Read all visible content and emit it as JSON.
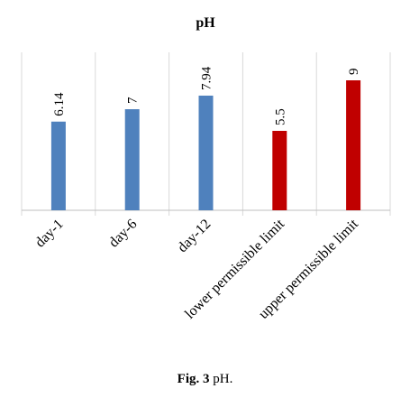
{
  "chart_data": {
    "type": "bar",
    "title": "pH",
    "categories": [
      "day-1",
      "day-6",
      "day-12",
      "lower permissible limit",
      "upper permissible limit"
    ],
    "values": [
      6.14,
      7,
      7.94,
      5.5,
      9
    ],
    "value_labels": [
      "6.14",
      "7",
      "7.94",
      "5.5",
      "9"
    ],
    "bar_colors": [
      "#4f81bd",
      "#4f81bd",
      "#4f81bd",
      "#c00000",
      "#c00000"
    ],
    "ylim": [
      0,
      10
    ],
    "xlabel": "",
    "ylabel": "",
    "grid": "vertical-category-separators"
  },
  "caption": {
    "label": "Fig. 3",
    "text": " pH."
  }
}
